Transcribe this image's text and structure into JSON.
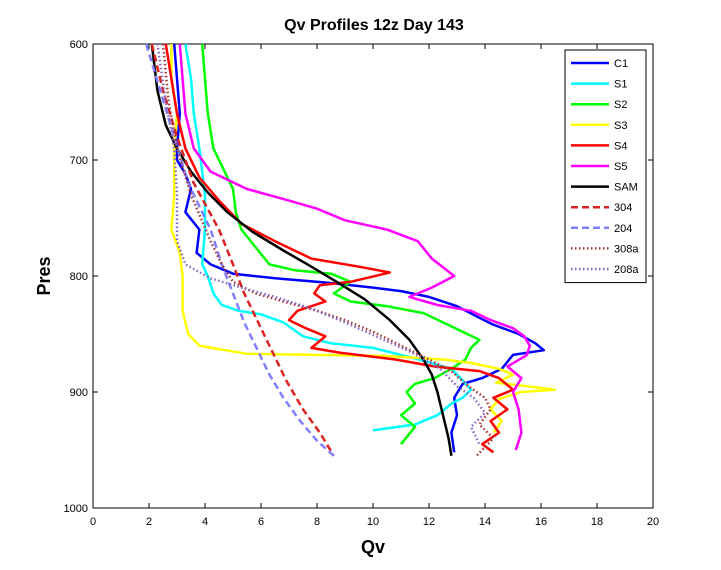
{
  "chart_data": {
    "type": "line",
    "title": "Qv Profiles 12z Day 143",
    "xlabel": "Qv",
    "ylabel": "Pres",
    "xlim": [
      0,
      20
    ],
    "ylim": [
      600,
      1000
    ],
    "y_reversed": true,
    "xticks": [
      "0",
      "2",
      "4",
      "6",
      "8",
      "10",
      "12",
      "14",
      "16",
      "18",
      "20"
    ],
    "yticks": [
      "600",
      "700",
      "800",
      "900",
      "1000"
    ],
    "legend_position": "top-right",
    "series": [
      {
        "name": "C1",
        "color": "#0000ff",
        "style": "solid",
        "points": [
          [
            2.9,
            600
          ],
          [
            3.0,
            630
          ],
          [
            3.1,
            660
          ],
          [
            3.0,
            690
          ],
          [
            3.0,
            700
          ],
          [
            3.3,
            712
          ],
          [
            3.5,
            725
          ],
          [
            3.3,
            745
          ],
          [
            3.8,
            760
          ],
          [
            3.7,
            780
          ],
          [
            4.2,
            790
          ],
          [
            5.0,
            798
          ],
          [
            6.5,
            802
          ],
          [
            8.5,
            806
          ],
          [
            10.0,
            810
          ],
          [
            11.0,
            813
          ],
          [
            12.0,
            818
          ],
          [
            13.0,
            826
          ],
          [
            13.8,
            836
          ],
          [
            14.3,
            842
          ],
          [
            15.2,
            850
          ],
          [
            15.8,
            858
          ],
          [
            16.1,
            864
          ],
          [
            15.0,
            868
          ],
          [
            14.6,
            880
          ],
          [
            13.9,
            888
          ],
          [
            13.2,
            893
          ],
          [
            12.9,
            905
          ],
          [
            13.0,
            920
          ],
          [
            12.8,
            935
          ],
          [
            12.9,
            952
          ]
        ]
      },
      {
        "name": "S1",
        "color": "#00ffff",
        "style": "solid",
        "points": [
          [
            3.3,
            600
          ],
          [
            3.5,
            630
          ],
          [
            3.6,
            660
          ],
          [
            3.8,
            690
          ],
          [
            3.9,
            710
          ],
          [
            4.0,
            730
          ],
          [
            4.0,
            760
          ],
          [
            3.9,
            790
          ],
          [
            4.1,
            800
          ],
          [
            4.3,
            815
          ],
          [
            4.6,
            825
          ],
          [
            5.2,
            830
          ],
          [
            6.0,
            833
          ],
          [
            6.8,
            840
          ],
          [
            7.5,
            852
          ],
          [
            8.5,
            858
          ],
          [
            10.0,
            862
          ],
          [
            11.0,
            868
          ],
          [
            11.8,
            873
          ],
          [
            12.8,
            880
          ],
          [
            13.2,
            890
          ],
          [
            13.5,
            898
          ],
          [
            13.2,
            905
          ],
          [
            12.8,
            910
          ],
          [
            12.3,
            920
          ],
          [
            11.5,
            928
          ],
          [
            10.0,
            933
          ]
        ]
      },
      {
        "name": "S2",
        "color": "#00ff00",
        "style": "solid",
        "points": [
          [
            3.9,
            600
          ],
          [
            4.0,
            630
          ],
          [
            4.1,
            660
          ],
          [
            4.3,
            690
          ],
          [
            4.7,
            710
          ],
          [
            5.0,
            725
          ],
          [
            5.1,
            745
          ],
          [
            5.3,
            760
          ],
          [
            5.8,
            775
          ],
          [
            6.3,
            790
          ],
          [
            7.2,
            795
          ],
          [
            8.5,
            798
          ],
          [
            9.2,
            805
          ],
          [
            8.6,
            815
          ],
          [
            9.2,
            822
          ],
          [
            10.5,
            826
          ],
          [
            11.8,
            832
          ],
          [
            12.5,
            840
          ],
          [
            13.2,
            848
          ],
          [
            13.8,
            855
          ],
          [
            13.5,
            862
          ],
          [
            13.3,
            872
          ],
          [
            12.8,
            880
          ],
          [
            12.2,
            888
          ],
          [
            11.5,
            893
          ],
          [
            11.2,
            900
          ],
          [
            11.5,
            910
          ],
          [
            11.0,
            920
          ],
          [
            11.5,
            930
          ],
          [
            11.0,
            945
          ]
        ]
      },
      {
        "name": "S3",
        "color": "#ffff00",
        "style": "solid",
        "points": [
          [
            2.8,
            600
          ],
          [
            2.8,
            630
          ],
          [
            3.0,
            660
          ],
          [
            2.9,
            690
          ],
          [
            2.9,
            710
          ],
          [
            2.9,
            730
          ],
          [
            2.8,
            760
          ],
          [
            3.1,
            780
          ],
          [
            3.2,
            800
          ],
          [
            3.2,
            830
          ],
          [
            3.4,
            850
          ],
          [
            3.8,
            860
          ],
          [
            4.5,
            863
          ],
          [
            5.5,
            867
          ],
          [
            8.0,
            868
          ],
          [
            10.5,
            869
          ],
          [
            12.5,
            872
          ],
          [
            13.5,
            875
          ],
          [
            14.5,
            880
          ],
          [
            15.0,
            885
          ],
          [
            14.4,
            892
          ],
          [
            15.5,
            895
          ],
          [
            16.5,
            898
          ],
          [
            15.3,
            900
          ],
          [
            14.5,
            906
          ],
          [
            14.2,
            915
          ],
          [
            14.6,
            925
          ],
          [
            14.3,
            935
          ]
        ]
      },
      {
        "name": "S4",
        "color": "#ff0000",
        "style": "solid",
        "points": [
          [
            2.6,
            600
          ],
          [
            2.8,
            630
          ],
          [
            3.0,
            660
          ],
          [
            3.3,
            690
          ],
          [
            3.8,
            715
          ],
          [
            4.5,
            735
          ],
          [
            5.3,
            755
          ],
          [
            6.5,
            770
          ],
          [
            7.8,
            785
          ],
          [
            9.5,
            792
          ],
          [
            10.6,
            797
          ],
          [
            9.2,
            805
          ],
          [
            8.1,
            808
          ],
          [
            7.9,
            815
          ],
          [
            8.3,
            822
          ],
          [
            7.3,
            830
          ],
          [
            7.0,
            838
          ],
          [
            7.6,
            845
          ],
          [
            8.3,
            852
          ],
          [
            7.8,
            862
          ],
          [
            8.8,
            866
          ],
          [
            10.8,
            872
          ],
          [
            12.2,
            878
          ],
          [
            13.8,
            882
          ],
          [
            14.5,
            888
          ],
          [
            15.0,
            898
          ],
          [
            14.3,
            905
          ],
          [
            14.8,
            915
          ],
          [
            14.2,
            925
          ],
          [
            14.5,
            935
          ],
          [
            13.9,
            945
          ],
          [
            14.3,
            952
          ]
        ]
      },
      {
        "name": "S5",
        "color": "#ff00ff",
        "style": "solid",
        "points": [
          [
            3.1,
            600
          ],
          [
            3.2,
            630
          ],
          [
            3.3,
            660
          ],
          [
            3.6,
            690
          ],
          [
            4.2,
            710
          ],
          [
            5.5,
            725
          ],
          [
            7.0,
            735
          ],
          [
            8.0,
            742
          ],
          [
            9.0,
            752
          ],
          [
            10.5,
            760
          ],
          [
            11.6,
            770
          ],
          [
            12.1,
            785
          ],
          [
            12.9,
            800
          ],
          [
            12.1,
            810
          ],
          [
            11.3,
            818
          ],
          [
            12.3,
            825
          ],
          [
            13.5,
            830
          ],
          [
            14.2,
            838
          ],
          [
            15.0,
            845
          ],
          [
            15.4,
            852
          ],
          [
            15.6,
            860
          ],
          [
            15.5,
            868
          ],
          [
            14.8,
            878
          ],
          [
            15.3,
            888
          ],
          [
            15.0,
            900
          ],
          [
            15.2,
            915
          ],
          [
            15.3,
            935
          ],
          [
            15.1,
            950
          ]
        ]
      },
      {
        "name": "SAM",
        "color": "#000000",
        "style": "solid",
        "points": [
          [
            2.1,
            600
          ],
          [
            2.3,
            640
          ],
          [
            2.6,
            670
          ],
          [
            3.0,
            690
          ],
          [
            3.5,
            710
          ],
          [
            4.1,
            728
          ],
          [
            4.8,
            745
          ],
          [
            5.7,
            762
          ],
          [
            6.8,
            778
          ],
          [
            7.8,
            792
          ],
          [
            8.7,
            805
          ],
          [
            9.7,
            820
          ],
          [
            10.6,
            838
          ],
          [
            11.3,
            855
          ],
          [
            11.8,
            872
          ],
          [
            12.1,
            885
          ],
          [
            12.3,
            900
          ],
          [
            12.5,
            920
          ],
          [
            12.7,
            940
          ],
          [
            12.8,
            955
          ]
        ]
      },
      {
        "name": "304",
        "color": "#dd2222",
        "style": "dashed",
        "points": [
          [
            2.1,
            600
          ],
          [
            2.5,
            640
          ],
          [
            3.0,
            680
          ],
          [
            3.6,
            720
          ],
          [
            4.5,
            760
          ],
          [
            5.0,
            790
          ],
          [
            5.4,
            815
          ],
          [
            5.9,
            840
          ],
          [
            6.4,
            865
          ],
          [
            6.9,
            890
          ],
          [
            7.5,
            915
          ],
          [
            8.1,
            935
          ],
          [
            8.6,
            955
          ]
        ]
      },
      {
        "name": "204",
        "color": "#8080ff",
        "style": "dashed",
        "points": [
          [
            1.9,
            600
          ],
          [
            2.4,
            640
          ],
          [
            2.9,
            680
          ],
          [
            3.4,
            720
          ],
          [
            4.2,
            760
          ],
          [
            4.6,
            790
          ],
          [
            5.0,
            815
          ],
          [
            5.4,
            840
          ],
          [
            5.9,
            865
          ],
          [
            6.3,
            885
          ],
          [
            6.8,
            905
          ],
          [
            7.4,
            925
          ],
          [
            8.0,
            942
          ],
          [
            8.6,
            955
          ]
        ]
      },
      {
        "name": "308a",
        "color": "#aa3333",
        "style": "dotted",
        "points": [
          [
            2.5,
            600
          ],
          [
            2.7,
            650
          ],
          [
            3.0,
            690
          ],
          [
            3.5,
            730
          ],
          [
            4.2,
            770
          ],
          [
            4.6,
            790
          ],
          [
            5.0,
            805
          ],
          [
            5.8,
            815
          ],
          [
            6.8,
            822
          ],
          [
            8.0,
            830
          ],
          [
            9.0,
            838
          ],
          [
            10.0,
            848
          ],
          [
            11.0,
            860
          ],
          [
            12.0,
            872
          ],
          [
            12.8,
            882
          ],
          [
            13.4,
            895
          ],
          [
            14.0,
            905
          ],
          [
            14.2,
            915
          ],
          [
            13.8,
            928
          ],
          [
            14.3,
            940
          ],
          [
            13.7,
            955
          ]
        ]
      },
      {
        "name": "208a",
        "color": "#8866cc",
        "style": "dotted",
        "points": [
          [
            2.3,
            600
          ],
          [
            2.6,
            650
          ],
          [
            2.9,
            690
          ],
          [
            3.0,
            730
          ],
          [
            3.0,
            770
          ],
          [
            3.3,
            790
          ],
          [
            4.2,
            802
          ],
          [
            5.3,
            810
          ],
          [
            6.5,
            818
          ],
          [
            7.8,
            828
          ],
          [
            9.0,
            840
          ],
          [
            10.2,
            853
          ],
          [
            11.4,
            866
          ],
          [
            12.4,
            880
          ],
          [
            13.0,
            895
          ],
          [
            13.6,
            905
          ],
          [
            14.0,
            918
          ],
          [
            13.5,
            930
          ],
          [
            13.8,
            945
          ]
        ]
      }
    ]
  }
}
